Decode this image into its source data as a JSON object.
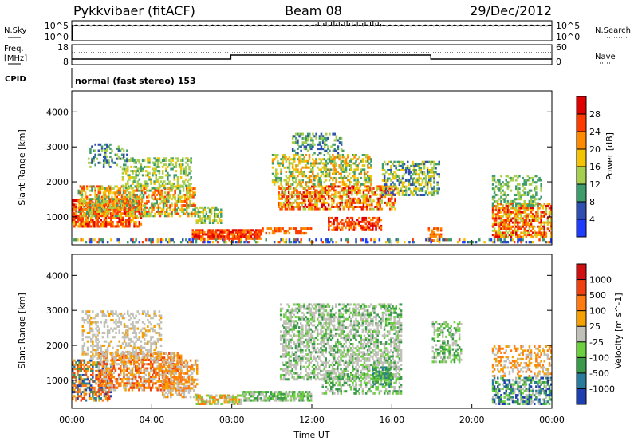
{
  "header": {
    "station": "Pykkvibaer (fitACF)",
    "beam": "Beam 08",
    "date": "29/Dec/2012"
  },
  "params": {
    "nsky_label": "N.Sky",
    "nsky_ticks": [
      "10^5",
      "10^0"
    ],
    "nsearch_label": "N.Search",
    "nsearch_ticks": [
      "10^5",
      "10^0"
    ],
    "freq_label_top": "Freq.",
    "freq_label_bottom": "[MHz]",
    "freq_ticks": [
      "18",
      "8"
    ],
    "nave_label": "Nave",
    "nave_ticks": [
      "60",
      "0"
    ],
    "cpid_label": "CPID",
    "cpid_text": "normal (fast stereo) 153"
  },
  "chart_data": [
    {
      "type": "heatmap",
      "panel": "power",
      "ylabel": "Slant Range [km]",
      "yticks": [
        "1000",
        "2000",
        "3000",
        "4000"
      ],
      "ylim": [
        200,
        4600
      ],
      "colorbar_label": "Power [dB]",
      "colorbar_ticks": [
        "4",
        "8",
        "12",
        "16",
        "20",
        "24",
        "28"
      ],
      "colors": [
        "#1f3dff",
        "#2c4fb0",
        "#3e9b6b",
        "#a6cf4f",
        "#f5c400",
        "#ff8a00",
        "#ff3b00",
        "#e00000"
      ]
    },
    {
      "type": "heatmap",
      "panel": "velocity",
      "ylabel": "Slant Range [km]",
      "yticks": [
        "1000",
        "2000",
        "3000",
        "4000"
      ],
      "ylim": [
        200,
        4600
      ],
      "colorbar_label": "Velocity [m s^-1]",
      "colorbar_ticks": [
        "1000",
        "500",
        "100",
        "25",
        "-25",
        "-100",
        "-500",
        "-1000"
      ],
      "colors": [
        "#1d3fb0",
        "#2a7b9b",
        "#3a9a4a",
        "#6ccf3f",
        "#c0c0b8",
        "#f5a000",
        "#ff7a10",
        "#f04010",
        "#d01010"
      ]
    }
  ],
  "xaxis": {
    "label": "Time UT",
    "ticks": [
      "00:00",
      "04:00",
      "08:00",
      "12:00",
      "16:00",
      "20:00",
      "00:00"
    ]
  }
}
